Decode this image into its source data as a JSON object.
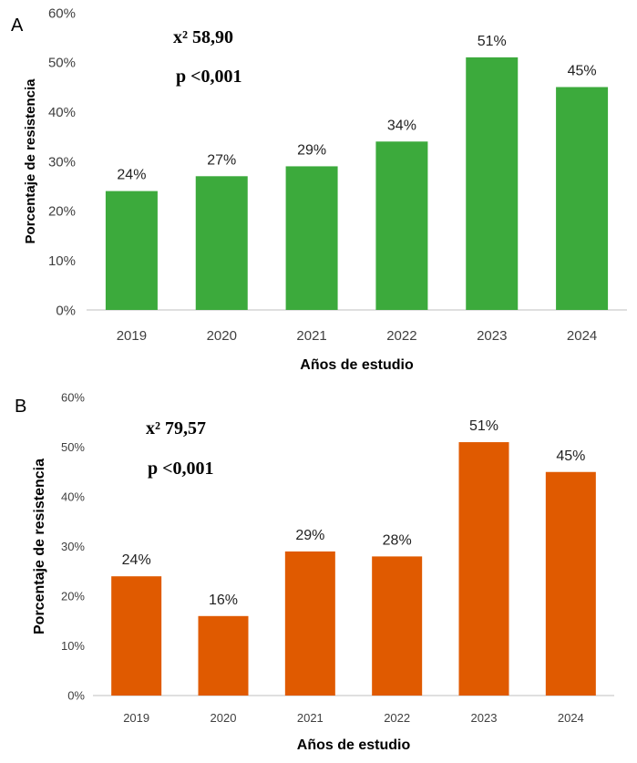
{
  "chart_data": [
    {
      "panel": "A",
      "type": "bar",
      "categories": [
        "2019",
        "2020",
        "2021",
        "2022",
        "2023",
        "2024"
      ],
      "values": [
        24,
        27,
        29,
        34,
        51,
        45
      ],
      "data_labels": [
        "24%",
        "27%",
        "29%",
        "34%",
        "51%",
        "45%"
      ],
      "ylabel": "Porcentaje de resistencia",
      "xlabel": "Años de estudio",
      "ylim": [
        0,
        60
      ],
      "yticks": [
        "0%",
        "10%",
        "20%",
        "30%",
        "40%",
        "50%",
        "60%"
      ],
      "color": "#3caa3c",
      "stat_chi": "x² 58,90",
      "stat_p": "p <0,001",
      "grid": false
    },
    {
      "panel": "B",
      "type": "bar",
      "categories": [
        "2019",
        "2020",
        "2021",
        "2022",
        "2023",
        "2024"
      ],
      "values": [
        24,
        16,
        29,
        28,
        51,
        45
      ],
      "data_labels": [
        "24%",
        "16%",
        "29%",
        "28%",
        "51%",
        "45%"
      ],
      "ylabel": "Porcentaje de resistencia",
      "xlabel": "Años de estudio",
      "ylim": [
        0,
        60
      ],
      "yticks": [
        "0%",
        "10%",
        "20%",
        "30%",
        "40%",
        "50%",
        "60%"
      ],
      "color": "#e05a00",
      "stat_chi": "x² 79,57",
      "stat_p": "p <0,001",
      "grid": false
    }
  ]
}
